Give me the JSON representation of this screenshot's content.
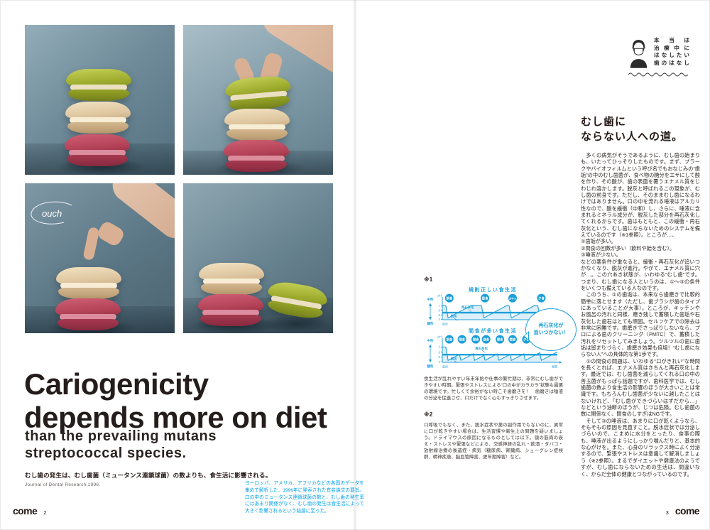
{
  "colors": {
    "accent_blue": "#1d9fd9",
    "cyan_text": "#00a0e9",
    "ink": "#231815"
  },
  "left": {
    "ouch": "ouch",
    "headline1": "Cariogenicity",
    "headline2": "depends more on diet",
    "subhead1": "than the prevailing mutans",
    "subhead2": "streptococcal species.",
    "caption": "むし歯の発生は、むし歯菌（ミュータンス連鎖球菌）の数よりも、食生活に影響される。",
    "source": "Journal of Dental Research,1996.",
    "note_cyan": "ヨーロッパ、アメリカ、アフリカなどの各国のデータを集めて解析した、1996年に発表された有名論文の要旨。口の中のミュータンス連鎖球菌の数と、むし歯の発生率にはあまり関係がなく、むし歯の発生は食生活によって大きく影響されるという結論に至った。",
    "logo": "come",
    "page_number": "2"
  },
  "right": {
    "stamp_lines": [
      "本当は",
      "治療中に",
      "はなしたい",
      "歯のはなし"
    ],
    "headline1": "むし歯に",
    "headline2": "ならない人への道。",
    "body_paragraphs": [
      "　多くの病気がそうであるように、むし歯の始まりも、いたってひっそりしたものです。まず、プラークやバイオフィルムという呼び名でもおなじみの“歯垢”の中のむし歯菌が、食べ物の糖分をエサにして酸を作り、その酸が、歯の表面を覆うエナメル質をじわじわ溶かします。脱灰と呼ばれるこの現象が、むし歯の前身です。ただし、そのままむし歯になるわけではありません。口の中を流れる唾液はアルカリ性なので、酸を緩衝（中和）し、さらに、唾液に含まれるミネラル成分が、脱灰した部分を再石灰化してくれるからです。歯はもともと、この緩衝・再石灰化という、むし歯にならないためのシステムを備えているのです（※1参照）。ところが…、",
      "①歯垢が多い。",
      "②間食の回数が多い（飲料や飴を含む）。",
      "③唾液が少ない。",
      "などの悪条件が重なると、緩衝・再石灰化が追いつかなくなり、脱灰が進行。やがて、エナメル質に穴が…。この穴あき状態が、いわゆる“むし歯”です。つまり、むし歯になる人というのは、①〜③の条件をいくつも備えている人なのです。",
      "　このうち、①の歯垢は、本来なら歯磨きで比較的簡単に落とせます（ただし、歯ブラシが歯のタイプにあっていることが大事）。ところが、キッチンやお風呂の汚れと同様、磨き残しで蓄積した歯垢や石灰化した歯石はとても頑固。セルフケアでの除去は非常に困難です。歯磨きでさっぱりしないなら、プロによる歯のクリーニング（PMTC）で、蓄積した汚れをリセットしてみましょう。ツルツルの歯に歯垢は留まりづらく、歯磨き効果も倍増！“むし歯にならない人”への具体的な第1歩です。",
      "　②の間食の問題は、いわゆる“口がきれい”な時間を長くとれば、エナメル質はきちんと再石灰化します。最近では、むし歯菌を減らしてくれる口の中の善玉菌がもっぱら話題ですが、歯科医学では、むし歯菌の数より食生活の影響のほうが大きいことは常識です。もちろんむし歯菌が少ないに越したことはないけれど、「むし歯ができづらいはずだから…」などという油断のほうが、じつは危険。むし歯菌の数に関係なく、間食のしすぎはNGです。",
      "　そして③の唾液は、あまりに口が乾くようなら、そもそもの原因を見直すこと。脱水症状では分泌しづらいので、こまめに水分をとったり、食事の際も、唾液が出るようにしっかり噛んだりと、基本的な心がけを。また、心身のリラックス時によく分泌するので、緊張やストレスは意識して解消しましょう（※2参照）。まるでダイエットや健康法のようですが、むし歯にならないための生活は、間違いなく、からだ全体の健康とつながっているのです。"
    ],
    "figure": {
      "ref1": "※1",
      "ref2": "※2",
      "bubble_lines": [
        "再石灰化が",
        "追いつかない！"
      ],
      "note1": "食生活が乱れやすい年末年始や仕事の繁忙期は、非常にむし歯ができやすい時期。緊張やストレスによる“口の中がカラカラ”状態も最悪の環境です。忙しくて余裕がない時こそ歯磨きを！　歯磨きは唾液の分泌を促進させ、口だけでなく心もすっきりさせます。",
      "note2": "口呼吸でもなく、また、脱水症状や薬の副作用でもないのに、異常に口が乾きやすい場合は、生活習慣や衛生上の問題を疑いましょう。ドライマウスの原因になるものとしては以下。顎の筋肉の衰え・ストレスや緊張などによる、交感神経の乱れ・飲酒・タバコ・放射線治療の後遺症・病気（糖尿病、腎臓病、シェーグレン症候群、精神疾患、脳血管障害、更年期障害）など。"
    },
    "logo": "come",
    "page_number": "3"
  },
  "chart_data": [
    {
      "type": "line",
      "title": "規則正しい食生活",
      "y_unit": "pH",
      "yticks": [
        7,
        6,
        5,
        4
      ],
      "ylim": [
        3.9,
        7.6
      ],
      "rest_ph": 7.1,
      "min_ph": 4.3,
      "critical_ph": 5.5,
      "neutral_label": "中性",
      "acid_label": "酸性",
      "x_start_label": "起床",
      "x_end_label": "就寝",
      "recovery": 0.2,
      "events": [
        {
          "label": "朝食",
          "t": 0.03
        },
        {
          "label": "昼食",
          "t": 0.34
        },
        {
          "label": "おやつ",
          "t": 0.58
        },
        {
          "label": "夕食",
          "t": 0.83
        }
      ],
      "annotations": [
        {
          "text": "再石灰化",
          "t": 0.22,
          "ph": 6.45
        },
        {
          "text": "脱灰",
          "t": 0.1,
          "ph": 4.45
        }
      ]
    },
    {
      "type": "line",
      "title": "間食が多い食生活",
      "y_unit": "pH",
      "yticks": [
        7,
        6,
        5,
        4
      ],
      "ylim": [
        3.9,
        7.6
      ],
      "rest_ph": 7.1,
      "min_ph": 4.3,
      "critical_ph": 5.5,
      "neutral_label": "中性",
      "acid_label": "酸性",
      "x_start_label": "起床",
      "x_end_label": "就寝",
      "recovery": 0.22,
      "events": [
        {
          "label": "朝食",
          "t": 0.03
        },
        {
          "label": "間食",
          "t": 0.14
        },
        {
          "label": "間食",
          "t": 0.26
        },
        {
          "label": "昼食",
          "t": 0.35
        },
        {
          "label": "間食",
          "t": 0.47
        },
        {
          "label": "間食",
          "t": 0.58
        },
        {
          "label": "夕食",
          "t": 0.7
        },
        {
          "label": "間食",
          "t": 0.84
        }
      ],
      "annotations": [
        {
          "text": "再石灰化",
          "t": 0.34,
          "ph": 6.6
        },
        {
          "text": "脱灰",
          "t": 0.1,
          "ph": 4.45
        }
      ]
    }
  ]
}
